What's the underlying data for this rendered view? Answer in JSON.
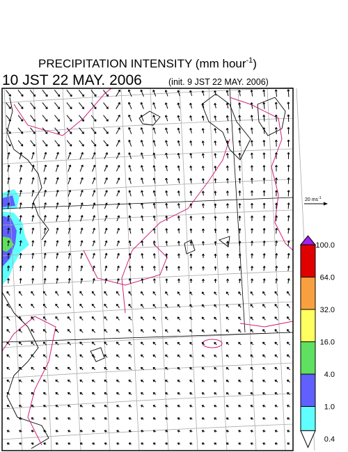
{
  "header": {
    "title": {
      "text": "PRECIPITATION INTENSITY (mm hour",
      "superscript": "-1",
      "end": ")"
    },
    "valid_time": "10 JST 22 MAY. 2006",
    "init_time": "(init. 9 JST 22 MAY. 2006)"
  },
  "wind_scale": {
    "text": "20 ms",
    "superscript": "-1"
  },
  "legend": {
    "labels": [
      "100.0",
      "64.0",
      "32.0",
      "16.0",
      "4.0",
      "1.0",
      "0.4"
    ],
    "colors": [
      "#e00000",
      "#f8a040",
      "#ffff60",
      "#60e060",
      "#6060ff",
      "#60ffff"
    ],
    "over_color": "#a020f0",
    "under_color": "#ffffff"
  }
}
